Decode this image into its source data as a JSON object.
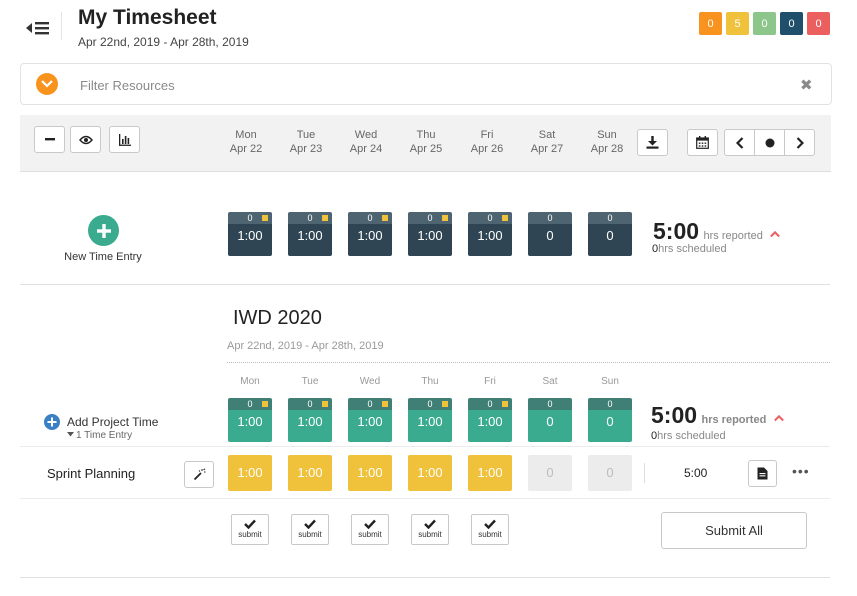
{
  "header": {
    "title": "My Timesheet",
    "date_range": "Apr 22nd, 2019 - Apr 28th, 2019",
    "badges": [
      {
        "label": "0",
        "color": "#f7931e"
      },
      {
        "label": "5",
        "color": "#f0c13a"
      },
      {
        "label": "0",
        "color": "#8cc68a"
      },
      {
        "label": "0",
        "color": "#1f4f6a"
      },
      {
        "label": "0",
        "color": "#ec5f5f"
      }
    ]
  },
  "filter": {
    "placeholder": "Filter Resources",
    "toggle_icon": "chevron-down-circle-icon",
    "clear_icon": "close-icon"
  },
  "toolbar": {
    "days": [
      {
        "dow": "Mon",
        "date": "Apr 22"
      },
      {
        "dow": "Tue",
        "date": "Apr 23"
      },
      {
        "dow": "Wed",
        "date": "Apr 24"
      },
      {
        "dow": "Thu",
        "date": "Apr 25"
      },
      {
        "dow": "Fri",
        "date": "Apr 26"
      },
      {
        "dow": "Sat",
        "date": "Apr 27"
      },
      {
        "dow": "Sun",
        "date": "Apr 28"
      }
    ]
  },
  "summary": {
    "new_entry_label": "New Time Entry",
    "days": [
      {
        "top": "0",
        "value": "1:00",
        "flag": true
      },
      {
        "top": "0",
        "value": "1:00",
        "flag": true
      },
      {
        "top": "0",
        "value": "1:00",
        "flag": true
      },
      {
        "top": "0",
        "value": "1:00",
        "flag": true
      },
      {
        "top": "0",
        "value": "1:00",
        "flag": true
      },
      {
        "top": "0",
        "value": "0",
        "flag": false
      },
      {
        "top": "0",
        "value": "0",
        "flag": false
      }
    ],
    "total": "5:00",
    "total_unit": "hrs reported",
    "scheduled_value": "0",
    "scheduled_label": "hrs scheduled"
  },
  "project": {
    "name": "IWD 2020",
    "date_range": "Apr 22nd, 2019 - Apr 28th, 2019",
    "day_labels": [
      "Mon",
      "Tue",
      "Wed",
      "Thu",
      "Fri",
      "Sat",
      "Sun"
    ],
    "add_time_label": "Add Project Time",
    "entry_count": "1 Time Entry",
    "days": [
      {
        "top": "0",
        "value": "1:00",
        "flag": true
      },
      {
        "top": "0",
        "value": "1:00",
        "flag": true
      },
      {
        "top": "0",
        "value": "1:00",
        "flag": true
      },
      {
        "top": "0",
        "value": "1:00",
        "flag": true
      },
      {
        "top": "0",
        "value": "1:00",
        "flag": true
      },
      {
        "top": "0",
        "value": "0",
        "flag": false
      },
      {
        "top": "0",
        "value": "0",
        "flag": false
      }
    ],
    "total": "5:00",
    "total_unit": "hrs reported",
    "scheduled_value": "0",
    "scheduled_label": "hrs scheduled",
    "task": {
      "name": "Sprint Planning",
      "hours": [
        "1:00",
        "1:00",
        "1:00",
        "1:00",
        "1:00",
        "0",
        "0"
      ],
      "total": "5:00"
    },
    "submit_label": "submit",
    "submit_all_label": "Submit All"
  }
}
